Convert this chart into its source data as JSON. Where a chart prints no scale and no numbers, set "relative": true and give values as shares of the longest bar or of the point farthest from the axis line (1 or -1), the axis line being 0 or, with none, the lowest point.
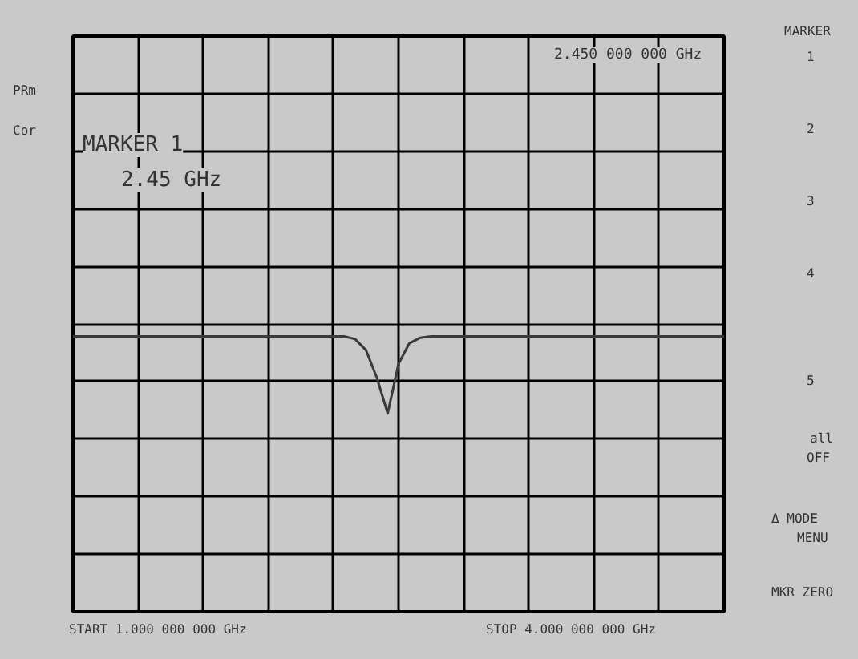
{
  "chart_data": {
    "type": "line",
    "relative": true,
    "categories": [
      null,
      null,
      null,
      null,
      null,
      null,
      null,
      null,
      null,
      null,
      null,
      null,
      null,
      null,
      null,
      null,
      null,
      null,
      null,
      null,
      null,
      null,
      null,
      null,
      null,
      null,
      null,
      null,
      null,
      null,
      null,
      null,
      null,
      null,
      null,
      null,
      null,
      null,
      null,
      null,
      null,
      null,
      null,
      null,
      null,
      null,
      null,
      null,
      null,
      null,
      null,
      null,
      null,
      null,
      null,
      null,
      null,
      null,
      null,
      null,
      null
    ],
    "series": [
      {
        "color": "#3a3a3a",
        "values": [
          1,
          1,
          1,
          1,
          1,
          1,
          1,
          1,
          1,
          1,
          1,
          1,
          1,
          1,
          1,
          1,
          1,
          1,
          1,
          1,
          1,
          1,
          1,
          1,
          1,
          1,
          0.99,
          0.95,
          0.85,
          0.72,
          0.9,
          0.975,
          0.995,
          1,
          1,
          1,
          1,
          1,
          1,
          1,
          1,
          1,
          1,
          1,
          1,
          1,
          1,
          1,
          1,
          1,
          1,
          1,
          1,
          1,
          1,
          1,
          1,
          1,
          1,
          1,
          1
        ]
      }
    ],
    "grid": true,
    "marker": "none",
    "line_style": "solid",
    "annotations": [
      "2.450 000 000 GHz",
      "MARKER 1",
      "2.45 GHz",
      "START 1.000 000 000 GHz",
      "STOP 4.000 000 000 GHz",
      "PRm",
      "Cor",
      "MARKER",
      "1",
      "2",
      "3",
      "4",
      "5",
      "all",
      "OFF",
      "Δ MODE",
      "MENU",
      "MKR ZERO"
    ]
  }
}
